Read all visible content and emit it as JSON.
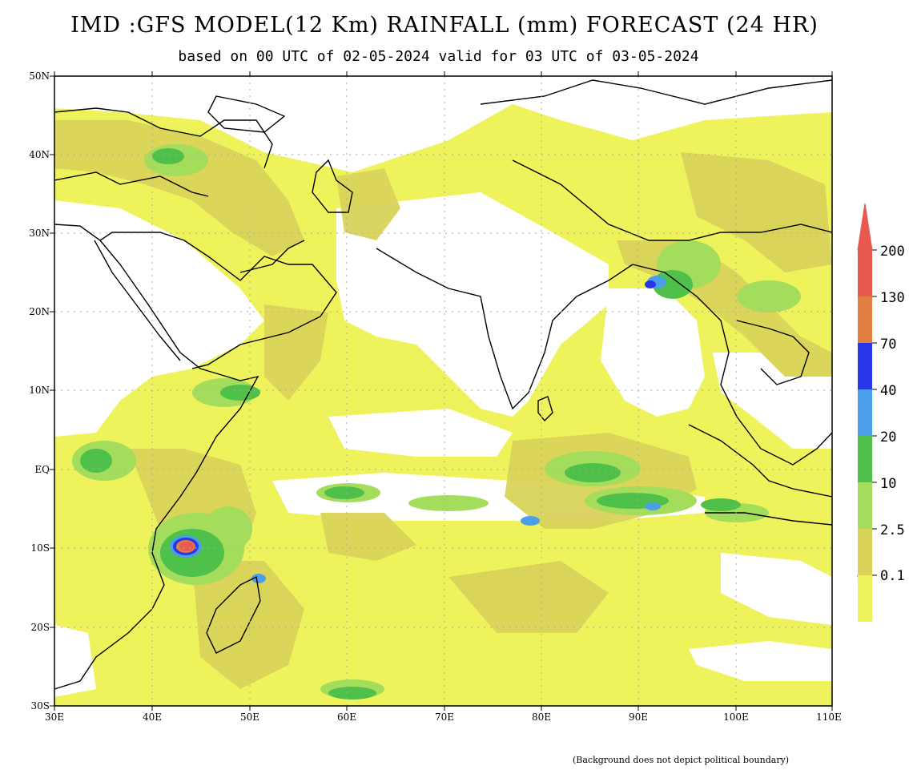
{
  "title": "IMD :GFS MODEL(12 Km) RAINFALL (mm) FORECAST (24 HR)",
  "subtitle": "based on 00 UTC of 02-05-2024 valid for 03 UTC of 03-05-2024",
  "note": "(Background does not depict political boundary)",
  "lat_labels": [
    "50N",
    "40N",
    "30N",
    "20N",
    "10N",
    "EQ",
    "10S",
    "20S",
    "30S"
  ],
  "lon_labels": [
    "30E",
    "40E",
    "50E",
    "60E",
    "70E",
    "80E",
    "90E",
    "100E",
    "110E"
  ],
  "colorbar": {
    "levels": [
      "200",
      "130",
      "70",
      "40",
      "20",
      "10",
      "2.5",
      "0.1"
    ],
    "colors": [
      "#e85a4f",
      "#e07f3f",
      "#2636e8",
      "#4a9fe8",
      "#4fc04a",
      "#a4dc5c",
      "#d9d35a",
      "#eef35c"
    ]
  },
  "map_colors": {
    "light": "#eef35c",
    "mid": "#d9d35a",
    "green_light": "#a4dc5c",
    "green": "#4fc04a",
    "blue": "#4a9fe8",
    "land": "#ffffff"
  }
}
